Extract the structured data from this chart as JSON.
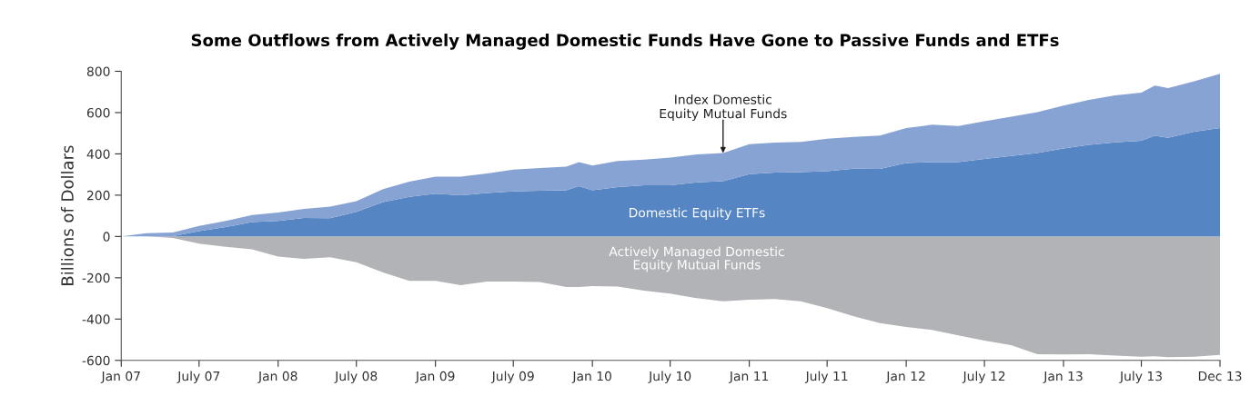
{
  "chart_data": [
    {
      "type": "area",
      "title": "Some Outflows from Actively Managed Domestic Funds Have Gone to Passive Funds and ETFs",
      "ylabel": "Billions of Dollars",
      "stacked": true,
      "grid": false,
      "x": [
        "2007-01",
        "2007-03",
        "2007-05",
        "2007-07",
        "2007-09",
        "2007-11",
        "2008-01",
        "2008-03",
        "2008-05",
        "2008-07",
        "2008-09",
        "2008-11",
        "2009-01",
        "2009-03",
        "2009-05",
        "2009-07",
        "2009-09",
        "2009-11",
        "2009-12",
        "2010-01",
        "2010-03",
        "2010-05",
        "2010-07",
        "2010-09",
        "2010-11",
        "2011-01",
        "2011-03",
        "2011-05",
        "2011-07",
        "2011-09",
        "2011-11",
        "2012-01",
        "2012-03",
        "2012-05",
        "2012-07",
        "2012-09",
        "2012-11",
        "2013-01",
        "2013-03",
        "2013-05",
        "2013-07",
        "2013-08",
        "2013-09",
        "2013-11",
        "2013-12-31"
      ],
      "series": [
        {
          "name": "Domestic Equity ETFs",
          "color": "#5585c3",
          "values": [
            0,
            0,
            2,
            26,
            45,
            70,
            75,
            89,
            88,
            119,
            166,
            192,
            207,
            199,
            211,
            218,
            221,
            224,
            243,
            224,
            239,
            248,
            248,
            262,
            268,
            302,
            309,
            312,
            316,
            328,
            327,
            356,
            360,
            360,
            375,
            390,
            404,
            426,
            444,
            456,
            463,
            488,
            478,
            507,
            525
          ]
        },
        {
          "name": "Index Domestic\nEquity Mutual Funds",
          "color": "#87a3d3",
          "values": [
            0,
            16,
            17,
            25,
            30,
            34,
            41,
            44,
            56,
            52,
            63,
            73,
            83,
            91,
            94,
            106,
            110,
            114,
            117,
            120,
            126,
            124,
            134,
            135,
            136,
            145,
            146,
            146,
            157,
            154,
            162,
            169,
            181,
            175,
            183,
            190,
            198,
            208,
            217,
            227,
            234,
            243,
            241,
            244,
            263
          ]
        }
      ],
      "xlim": [
        "2007-01-01",
        "2013-12-31"
      ],
      "xticks": [
        {
          "value": "2007-01-01",
          "label": "Jan 07"
        },
        {
          "value": "2007-07-01",
          "label": "July 07"
        },
        {
          "value": "2008-01-01",
          "label": "Jan 08"
        },
        {
          "value": "2008-07-01",
          "label": "July 08"
        },
        {
          "value": "2009-01-01",
          "label": "Jan 09"
        },
        {
          "value": "2009-07-01",
          "label": "July 09"
        },
        {
          "value": "2010-01-01",
          "label": "Jan 10"
        },
        {
          "value": "2010-07-01",
          "label": "July 10"
        },
        {
          "value": "2011-01-01",
          "label": "Jan 11"
        },
        {
          "value": "2011-07-01",
          "label": "July 11"
        },
        {
          "value": "2012-01-01",
          "label": "Jan 12"
        },
        {
          "value": "2012-07-01",
          "label": "July 12"
        },
        {
          "value": "2013-01-01",
          "label": "Jan 13"
        },
        {
          "value": "2013-07-01",
          "label": "July 13"
        },
        {
          "value": "2013-12-31",
          "label": "Dec 13"
        }
      ],
      "ylim": [
        -600,
        800
      ],
      "yticks": [
        -600,
        -400,
        -200,
        0,
        200,
        400,
        600,
        800
      ]
    },
    {
      "type": "area",
      "tick_labels": false,
      "x": [
        "2007-01",
        "2007-03",
        "2007-05",
        "2007-07",
        "2007-09",
        "2007-11",
        "2008-01",
        "2008-03",
        "2008-05",
        "2008-07",
        "2008-09",
        "2008-11",
        "2009-01",
        "2009-03",
        "2009-05",
        "2009-07",
        "2009-09",
        "2009-11",
        "2009-12",
        "2010-01",
        "2010-03",
        "2010-05",
        "2010-07",
        "2010-09",
        "2010-11",
        "2011-01",
        "2011-03",
        "2011-05",
        "2011-07",
        "2011-09",
        "2011-11",
        "2012-01",
        "2012-03",
        "2012-05",
        "2012-07",
        "2012-09",
        "2012-11",
        "2013-01",
        "2013-03",
        "2013-05",
        "2013-07",
        "2013-08",
        "2013-09",
        "2013-11",
        "2013-12-31"
      ],
      "series": [
        {
          "name": "Actively Managed Domestic\nEquity Mutual Funds",
          "color": "#b2b3b7",
          "values": [
            0,
            0,
            -7,
            -35,
            -50,
            -62,
            -97,
            -108,
            -101,
            -125,
            -174,
            -215,
            -215,
            -236,
            -218,
            -218,
            -221,
            -245,
            -245,
            -240,
            -243,
            -262,
            -277,
            -299,
            -314,
            -306,
            -303,
            -314,
            -347,
            -387,
            -420,
            -438,
            -453,
            -479,
            -504,
            -526,
            -570,
            -571,
            -570,
            -577,
            -582,
            -580,
            -585,
            -582,
            -574
          ]
        }
      ],
      "xlim": [
        "2007-01-01",
        "2013-12-31"
      ],
      "ylim": [
        -600,
        800
      ]
    }
  ]
}
